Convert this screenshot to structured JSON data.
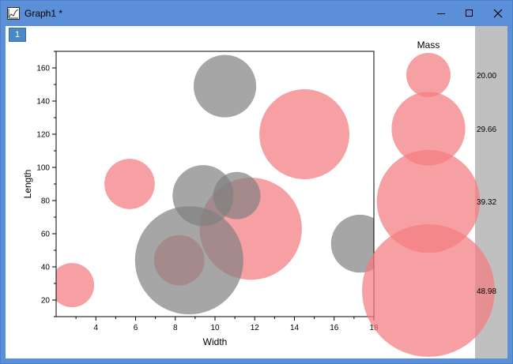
{
  "window": {
    "title": "Graph1 *",
    "layer_label": "1",
    "minimize_icon": "minimize-icon",
    "maximize_icon": "maximize-icon",
    "close_icon": "close-icon"
  },
  "colors": {
    "titlebar": "#5b8fd8",
    "pink": "#f47c80",
    "gray": "#808080",
    "legend_bar": "#c0c0c0"
  },
  "chart_data": {
    "type": "scatter",
    "subtype": "bubble",
    "xlabel": "Width",
    "ylabel": "Length",
    "xlim": [
      2,
      18
    ],
    "ylim": [
      10,
      170
    ],
    "xticks": [
      4,
      6,
      8,
      10,
      12,
      14,
      16,
      18
    ],
    "yticks": [
      20,
      40,
      60,
      80,
      100,
      120,
      140,
      160
    ],
    "size_legend": {
      "title": "Mass",
      "values": [
        "20.00",
        "29.66",
        "39.32",
        "48.98"
      ],
      "position": "right"
    },
    "series": [
      {
        "color": "#f47c80",
        "points": [
          {
            "x": 2.8,
            "y": 29,
            "mass": 20.0
          },
          {
            "x": 5.7,
            "y": 90,
            "mass": 22.0
          },
          {
            "x": 8.2,
            "y": 44,
            "mass": 22.0
          },
          {
            "x": 11.8,
            "y": 63,
            "mass": 39.0
          },
          {
            "x": 14.5,
            "y": 120,
            "mass": 35.0
          }
        ]
      },
      {
        "color": "#808080",
        "points": [
          {
            "x": 10.5,
            "y": 149,
            "mass": 26.0
          },
          {
            "x": 9.4,
            "y": 83,
            "mass": 25.5
          },
          {
            "x": 11.1,
            "y": 83,
            "mass": 21.0
          },
          {
            "x": 8.7,
            "y": 44,
            "mass": 41.0
          },
          {
            "x": 17.3,
            "y": 54,
            "mass": 24.5
          }
        ]
      }
    ]
  }
}
